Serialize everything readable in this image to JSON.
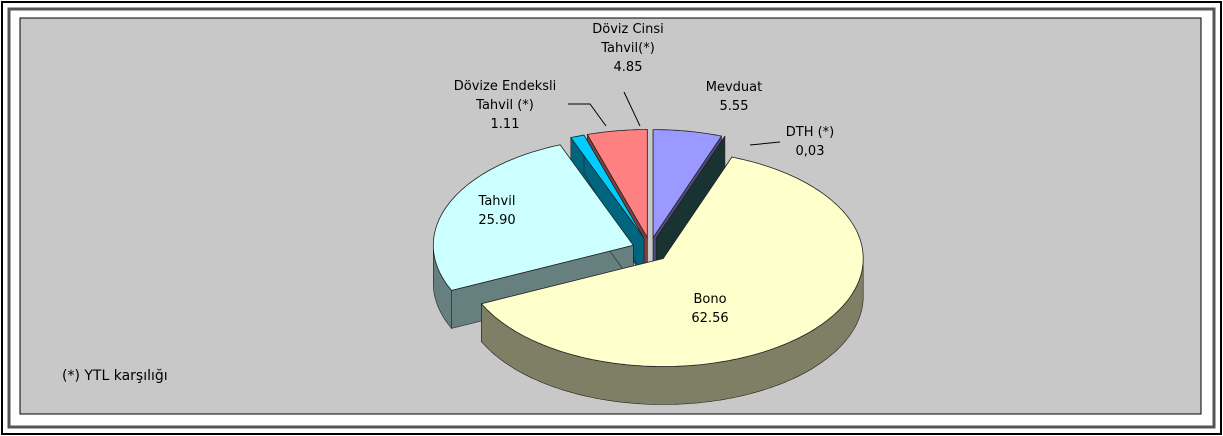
{
  "chart_data": {
    "type": "pie3d",
    "categories": [
      "Mevduat",
      "DTH (*)",
      "Bono",
      "Tahvil",
      "Dövize Endeksli\nTahvil (*)",
      "Döviz Cinsi\nTahvil(*)"
    ],
    "values": [
      5.55,
      0.03,
      62.56,
      25.9,
      1.11,
      4.85
    ],
    "value_labels": [
      "5.55",
      "0,03",
      "62.56",
      "25.90",
      "1.11",
      "4.85"
    ],
    "colors": [
      "#9999ff",
      "#336666",
      "#ffffcc",
      "#ccffff",
      "#00ccff",
      "#ff8080"
    ],
    "footnote": "(*) YTL karşılığı"
  }
}
